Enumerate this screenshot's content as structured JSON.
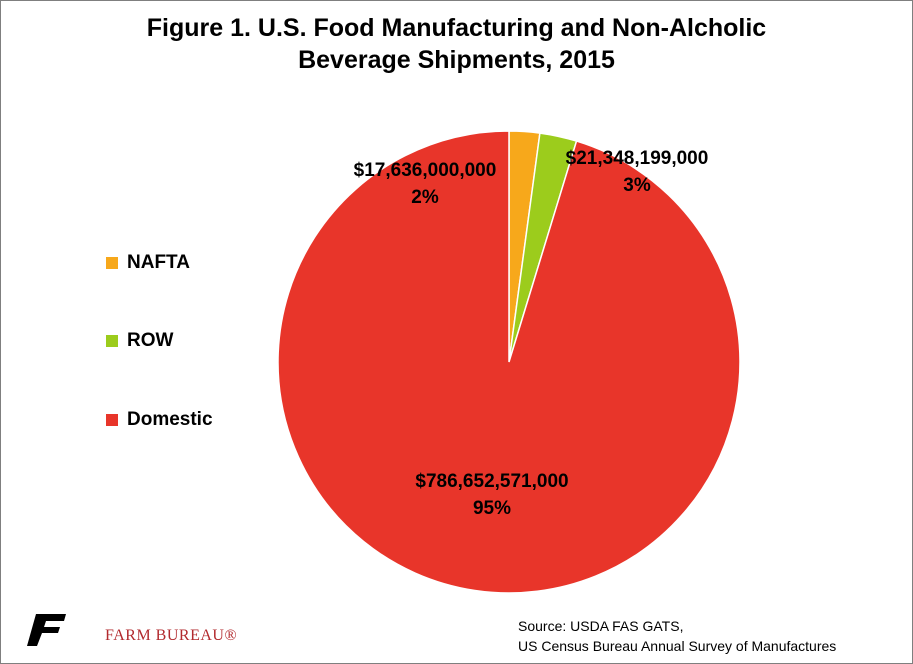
{
  "chart_data": {
    "type": "pie",
    "title_lines": [
      "Figure 1. U.S. Food Manufacturing and Non-Alcholic",
      "Beverage Shipments, 2015"
    ],
    "categories": [
      "NAFTA",
      "ROW",
      "Domestic"
    ],
    "values": [
      17636000000,
      21348199000,
      786652571000
    ],
    "value_labels": [
      "$17,636,000,000",
      "$21,348,199,000",
      "$786,652,571,000"
    ],
    "percent_labels": [
      "2%",
      "3%",
      "95%"
    ],
    "colors": [
      "#f7a81b",
      "#9ccc1c",
      "#e8352a"
    ],
    "legend_position": "left",
    "start_angle": "12 o'clock, clockwise"
  },
  "source_lines": [
    "Source: USDA FAS GATS,",
    "US Census Bureau  Annual Survey of Manufactures"
  ],
  "logo": {
    "text": "FARM BUREAU®",
    "color": "#b22a2e"
  }
}
